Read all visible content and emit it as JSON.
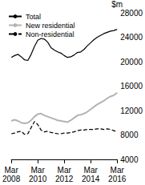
{
  "chart_data": {
    "type": "line",
    "ylabel": "$m",
    "categories": [
      "Mar 2008",
      null,
      null,
      null,
      null,
      null,
      null,
      null,
      "Mar 2010",
      null,
      null,
      null,
      null,
      null,
      null,
      null,
      "Mar 2012",
      null,
      null,
      null,
      null,
      null,
      null,
      null,
      "Mar 2014",
      null,
      null,
      null,
      null,
      null,
      null,
      null,
      "Mar 2016"
    ],
    "series": [
      {
        "name": "Total",
        "color": "#000000",
        "line_style": "solid",
        "values": [
          20700,
          21000,
          21200,
          20800,
          20300,
          20200,
          21200,
          22500,
          23500,
          23800,
          23700,
          23200,
          22300,
          21900,
          21600,
          21400,
          21000,
          20700,
          20800,
          21100,
          21500,
          21600,
          22000,
          22600,
          23100,
          23600,
          24000,
          24300,
          24600,
          24800,
          25000,
          25100,
          25300
        ]
      },
      {
        "name": "New residential",
        "color": "#b3b3b3",
        "line_style": "solid",
        "values": [
          10300,
          10500,
          10300,
          10000,
          9900,
          10000,
          10400,
          11000,
          11400,
          11500,
          11200,
          11000,
          10800,
          10600,
          10400,
          10300,
          10200,
          10100,
          10400,
          10800,
          11200,
          11300,
          11500,
          11800,
          12200,
          12600,
          13000,
          13300,
          13600,
          14000,
          14300,
          14500,
          14900
        ]
      },
      {
        "name": "Non-residential",
        "color": "#000000",
        "line_style": "dashed",
        "values": [
          8200,
          8300,
          8500,
          8600,
          8100,
          8200,
          9200,
          10200,
          9700,
          8800,
          8500,
          8600,
          8400,
          8300,
          8200,
          8200,
          8300,
          8300,
          8400,
          8500,
          8700,
          8800,
          8800,
          8900,
          8900,
          8900,
          9000,
          9000,
          8900,
          9000,
          8900,
          8700,
          8500
        ]
      }
    ],
    "ylim": [
      4000,
      28000
    ],
    "yticks": [
      4000,
      8000,
      12000,
      16000,
      20000,
      24000,
      28000
    ],
    "grid": false,
    "legend": "top-left"
  }
}
